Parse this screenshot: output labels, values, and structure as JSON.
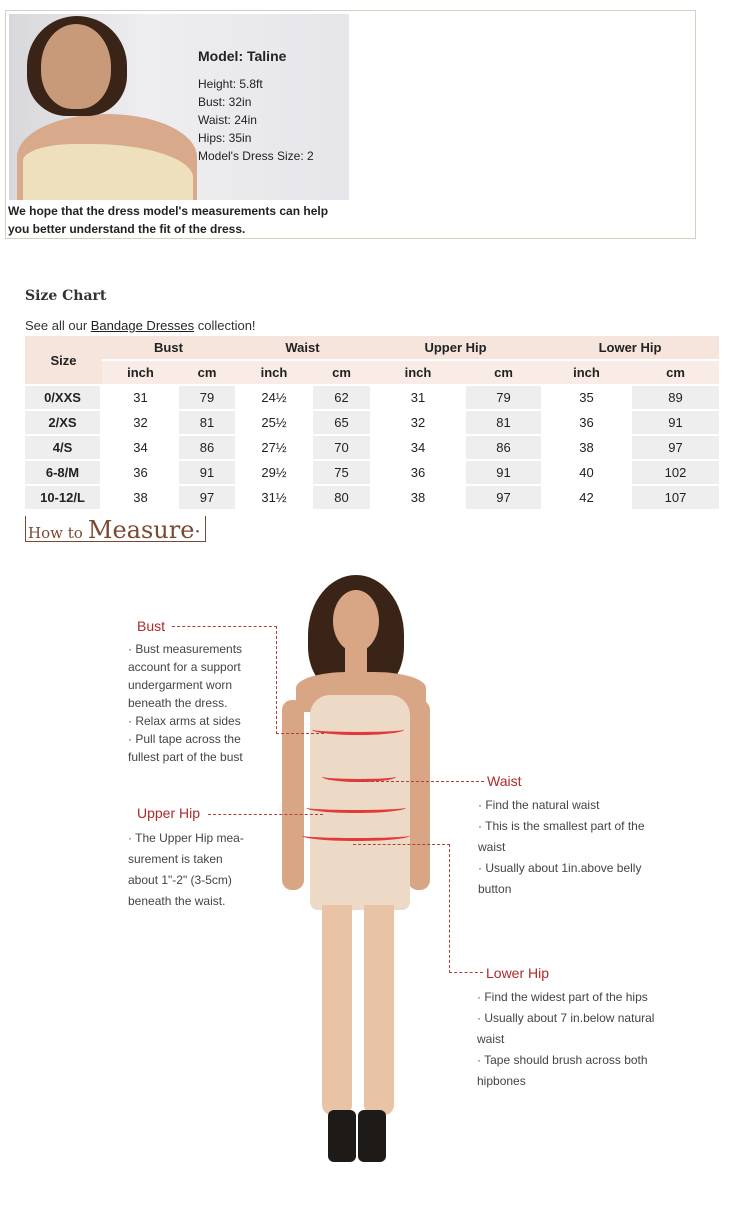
{
  "model": {
    "title": "Model: Taline",
    "lines": [
      "Height: 5.8ft",
      "Bust: 32in",
      "Waist: 24in",
      "Hips: 35in",
      "Model's Dress Size: 2"
    ],
    "note": [
      "We hope that the dress model's measurements can help",
      "you better understand the fit of the dress."
    ]
  },
  "size_chart": {
    "title": "Size Chart",
    "sub_prefix": "See all our ",
    "link": "Bandage Dresses",
    "sub_suffix": " collection!",
    "size_header": "Size",
    "groups": [
      "Bust",
      "Waist",
      "Upper Hip",
      "Lower Hip"
    ],
    "units": [
      "inch",
      "cm",
      "inch",
      "cm",
      "inch",
      "cm",
      "inch",
      "cm"
    ],
    "rows": [
      [
        "0/XXS",
        "31",
        "79",
        "24½",
        "62",
        "31",
        "79",
        "35",
        "89"
      ],
      [
        "2/XS",
        "32",
        "81",
        "25½",
        "65",
        "32",
        "81",
        "36",
        "91"
      ],
      [
        "4/S",
        "34",
        "86",
        "27½",
        "70",
        "34",
        "86",
        "38",
        "97"
      ],
      [
        "6-8/M",
        "36",
        "91",
        "29½",
        "75",
        "36",
        "91",
        "40",
        "102"
      ],
      [
        "10-12/L",
        "38",
        "97",
        "31½",
        "80",
        "38",
        "97",
        "42",
        "107"
      ]
    ]
  },
  "how_to": {
    "small": "How to",
    "big": "Measure"
  },
  "measure": {
    "bust": {
      "title": "Bust",
      "items": [
        "Bust measurements account for a support undergarment worn beneath the dress.",
        "Relax arms at sides",
        "Pull tape across the fullest part of the bust"
      ]
    },
    "upper_hip": {
      "title": "Upper Hip",
      "items": [
        "The Upper Hip mea-surement is taken about 1\"-2\" (3-5cm) beneath the waist."
      ]
    },
    "waist": {
      "title": "Waist",
      "items": [
        "Find the natural waist",
        "This is the smallest part of the waist",
        "Usually about 1in.above belly button"
      ]
    },
    "lower_hip": {
      "title": "Lower Hip",
      "items": [
        "Find the widest part of the hips",
        "Usually about 7 in.below natural waist",
        "Tape should brush across both hipbones"
      ]
    }
  },
  "colors": {
    "accent_red": "#b02a2a",
    "header_bg": "#f5e5dd",
    "brown": "#7a4a30"
  }
}
